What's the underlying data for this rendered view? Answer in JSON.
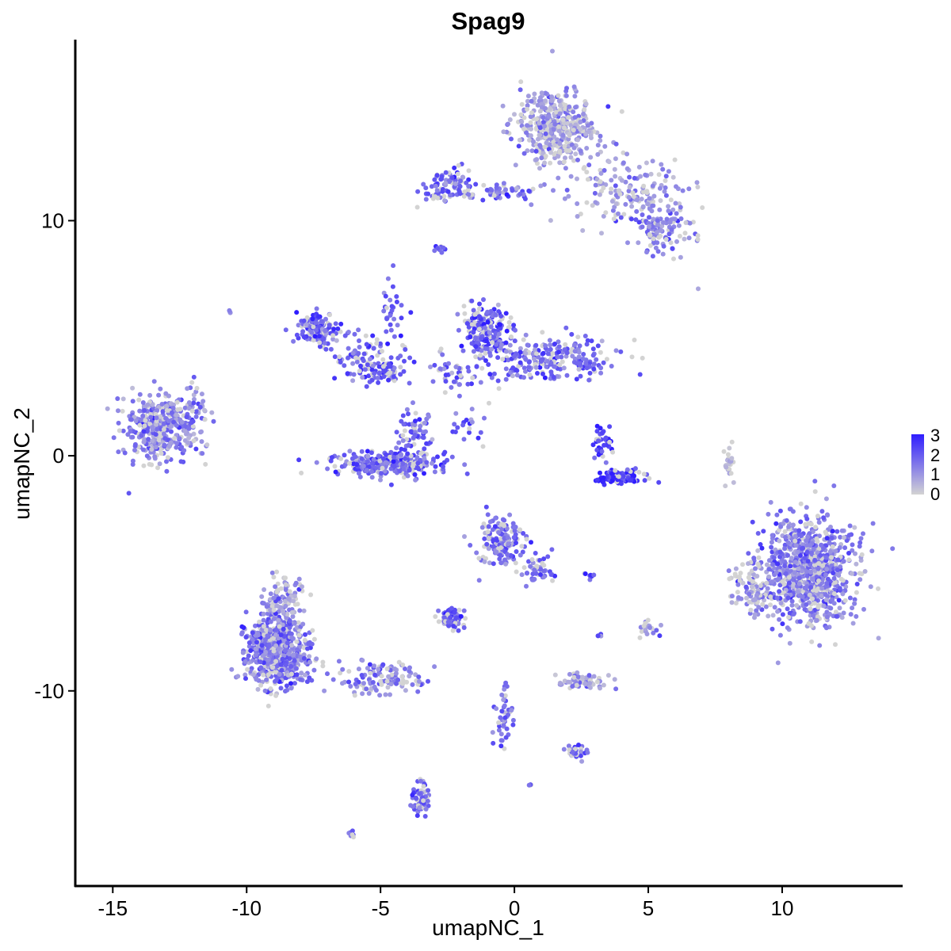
{
  "chart_data": {
    "type": "scatter",
    "title": "Spag9",
    "xlabel": "umapNC_1",
    "ylabel": "umapNC_2",
    "xlim": [
      -16.4,
      14.5
    ],
    "ylim": [
      -18.3,
      17.7
    ],
    "x_ticks": [
      -15,
      -10,
      -5,
      0,
      5,
      10
    ],
    "x_tick_labels": [
      "-15",
      "-10",
      "-5",
      "0",
      "5",
      "10"
    ],
    "y_ticks": [
      10,
      0,
      -10
    ],
    "y_tick_labels": [
      "10",
      "0",
      "-10"
    ],
    "grid": false,
    "point_color_low": "#d3d3d3",
    "point_color_high": "#2f1dff",
    "legend": {
      "position": "right",
      "type": "colorbar",
      "min": 0,
      "max": 3,
      "labels": [
        "3",
        "2",
        "1",
        "0"
      ]
    },
    "series": [
      {
        "clusters": [
          {
            "x": 1.6,
            "y": 14.0,
            "sx": 1.0,
            "sy": 1.1,
            "n": 420,
            "expr": 0.9
          },
          {
            "x": 4.2,
            "y": 11.2,
            "sx": 1.5,
            "sy": 1.0,
            "n": 160,
            "expr": 1.0
          },
          {
            "x": 5.6,
            "y": 9.6,
            "sx": 0.8,
            "sy": 0.6,
            "n": 110,
            "expr": 1.3
          },
          {
            "x": -2.5,
            "y": 11.5,
            "sx": 0.7,
            "sy": 0.5,
            "n": 90,
            "expr": 1.9
          },
          {
            "x": -0.5,
            "y": 11.2,
            "sx": 1.1,
            "sy": 0.25,
            "n": 50,
            "expr": 1.5
          },
          {
            "x": -13.3,
            "y": 1.2,
            "sx": 0.9,
            "sy": 0.9,
            "n": 380,
            "expr": 1.4
          },
          {
            "x": -11.9,
            "y": 1.8,
            "sx": 0.4,
            "sy": 0.9,
            "n": 50,
            "expr": 1.3
          },
          {
            "x": -7.4,
            "y": 5.4,
            "sx": 0.45,
            "sy": 0.5,
            "n": 140,
            "expr": 2.0
          },
          {
            "x": -5.5,
            "y": 4.2,
            "sx": 0.9,
            "sy": 0.8,
            "n": 100,
            "expr": 1.9
          },
          {
            "x": -4.8,
            "y": 3.6,
            "sx": 0.5,
            "sy": 0.3,
            "n": 60,
            "expr": 2.0
          },
          {
            "x": -4.7,
            "y": -0.3,
            "sx": 1.3,
            "sy": 0.35,
            "n": 300,
            "expr": 1.8
          },
          {
            "x": -3.7,
            "y": 1.0,
            "sx": 0.4,
            "sy": 0.6,
            "n": 60,
            "expr": 1.8
          },
          {
            "x": -1.0,
            "y": 5.3,
            "sx": 0.6,
            "sy": 0.7,
            "n": 200,
            "expr": 2.0
          },
          {
            "x": 1.4,
            "y": 4.1,
            "sx": 1.7,
            "sy": 0.6,
            "n": 240,
            "expr": 1.8
          },
          {
            "x": -2.2,
            "y": 3.5,
            "sx": 0.6,
            "sy": 0.6,
            "n": 40,
            "expr": 1.5
          },
          {
            "x": 3.9,
            "y": -0.9,
            "sx": 0.55,
            "sy": 0.18,
            "n": 120,
            "expr": 2.8
          },
          {
            "x": 3.3,
            "y": 0.6,
            "sx": 0.3,
            "sy": 0.5,
            "n": 40,
            "expr": 2.4
          },
          {
            "x": 11.0,
            "y": -4.8,
            "sx": 1.1,
            "sy": 1.5,
            "n": 900,
            "expr": 1.4
          },
          {
            "x": 8.8,
            "y": -5.6,
            "sx": 0.5,
            "sy": 0.8,
            "n": 90,
            "expr": 1.0
          },
          {
            "x": 8.0,
            "y": -0.3,
            "sx": 0.12,
            "sy": 0.5,
            "n": 25,
            "expr": 0.1
          },
          {
            "x": -8.9,
            "y": -8.3,
            "sx": 0.8,
            "sy": 1.0,
            "n": 650,
            "expr": 1.5
          },
          {
            "x": -8.7,
            "y": -6.0,
            "sx": 0.5,
            "sy": 0.6,
            "n": 100,
            "expr": 1.0
          },
          {
            "x": -5.0,
            "y": -9.5,
            "sx": 1.0,
            "sy": 0.45,
            "n": 120,
            "expr": 1.4
          },
          {
            "x": -0.5,
            "y": -3.6,
            "sx": 0.6,
            "sy": 0.7,
            "n": 170,
            "expr": 1.6
          },
          {
            "x": 0.9,
            "y": -4.9,
            "sx": 0.45,
            "sy": 0.5,
            "n": 50,
            "expr": 1.6
          },
          {
            "x": -2.4,
            "y": -6.9,
            "sx": 0.35,
            "sy": 0.3,
            "n": 80,
            "expr": 1.9
          },
          {
            "x": 2.6,
            "y": -9.6,
            "sx": 0.55,
            "sy": 0.2,
            "n": 80,
            "expr": 0.7
          },
          {
            "x": -0.4,
            "y": -11.2,
            "sx": 0.25,
            "sy": 0.9,
            "n": 45,
            "expr": 1.6
          },
          {
            "x": 2.3,
            "y": -12.6,
            "sx": 0.25,
            "sy": 0.2,
            "n": 30,
            "expr": 1.8
          },
          {
            "x": -3.5,
            "y": -14.6,
            "sx": 0.25,
            "sy": 0.6,
            "n": 60,
            "expr": 1.7
          },
          {
            "x": -4.6,
            "y": 6.4,
            "sx": 0.25,
            "sy": 0.8,
            "n": 25,
            "expr": 2.0
          },
          {
            "x": -2.8,
            "y": 8.8,
            "sx": 0.12,
            "sy": 0.1,
            "n": 10,
            "expr": 2.2
          },
          {
            "x": 5.0,
            "y": -7.3,
            "sx": 0.3,
            "sy": 0.2,
            "n": 20,
            "expr": 1.2
          },
          {
            "x": -1.6,
            "y": 1.2,
            "sx": 0.6,
            "sy": 0.5,
            "n": 20,
            "expr": 1.9
          },
          {
            "x": 2.8,
            "y": -5.1,
            "sx": 0.15,
            "sy": 0.1,
            "n": 8,
            "expr": 2.0
          },
          {
            "x": -6.1,
            "y": -16.1,
            "sx": 0.12,
            "sy": 0.1,
            "n": 8,
            "expr": 2.0
          },
          {
            "x": 0.6,
            "y": -14.0,
            "sx": 0.08,
            "sy": 0.08,
            "n": 4,
            "expr": 2.0
          },
          {
            "x": 3.2,
            "y": -7.6,
            "sx": 0.1,
            "sy": 0.1,
            "n": 4,
            "expr": 1.8
          },
          {
            "x": 6.8,
            "y": 7.1,
            "sx": 0.05,
            "sy": 0.05,
            "n": 1,
            "expr": 1.5
          },
          {
            "x": -10.6,
            "y": 6.1,
            "sx": 0.06,
            "sy": 0.06,
            "n": 3,
            "expr": 0.6
          }
        ]
      }
    ]
  }
}
